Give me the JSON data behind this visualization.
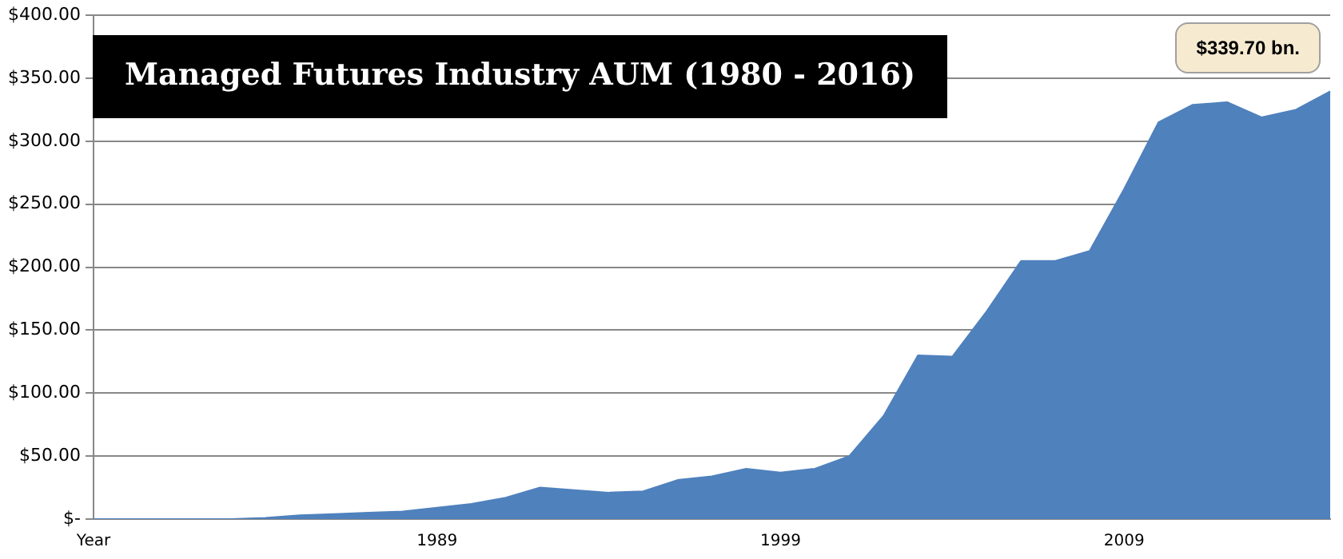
{
  "chart_data": {
    "type": "area",
    "title": "Managed Futures Industry AUM (1980 - 2016)",
    "categories": [
      "Year",
      null,
      null,
      null,
      null,
      null,
      null,
      null,
      null,
      null,
      "1989",
      null,
      null,
      null,
      null,
      null,
      null,
      null,
      null,
      null,
      "1999",
      null,
      null,
      null,
      null,
      null,
      null,
      null,
      null,
      null,
      "2009",
      null,
      null,
      null,
      null,
      null,
      null
    ],
    "series": [
      {
        "color": "#4f81bd",
        "values": [
          0,
          0,
          0,
          0,
          0,
          1,
          3,
          4,
          5,
          6,
          9,
          12,
          17,
          25,
          23,
          21,
          22,
          31,
          34,
          40,
          37,
          40,
          50,
          82,
          130,
          129,
          165,
          205,
          205,
          213,
          262,
          315,
          329,
          331,
          319,
          325,
          339.7
        ]
      }
    ],
    "ylim": [
      0,
      400
    ],
    "yticks": [
      {
        "value": 0,
        "label": "$-"
      },
      {
        "value": 50,
        "label": "$50.00"
      },
      {
        "value": 100,
        "label": "$100.00"
      },
      {
        "value": 150,
        "label": "$150.00"
      },
      {
        "value": 200,
        "label": "$200.00"
      },
      {
        "value": 250,
        "label": "$250.00"
      },
      {
        "value": 300,
        "label": "$300.00"
      },
      {
        "value": 350,
        "label": "$350.00"
      },
      {
        "value": 400,
        "label": "$400.00"
      }
    ],
    "grid": "y",
    "legend": false,
    "annotations": [
      "$339.70 bn."
    ]
  }
}
